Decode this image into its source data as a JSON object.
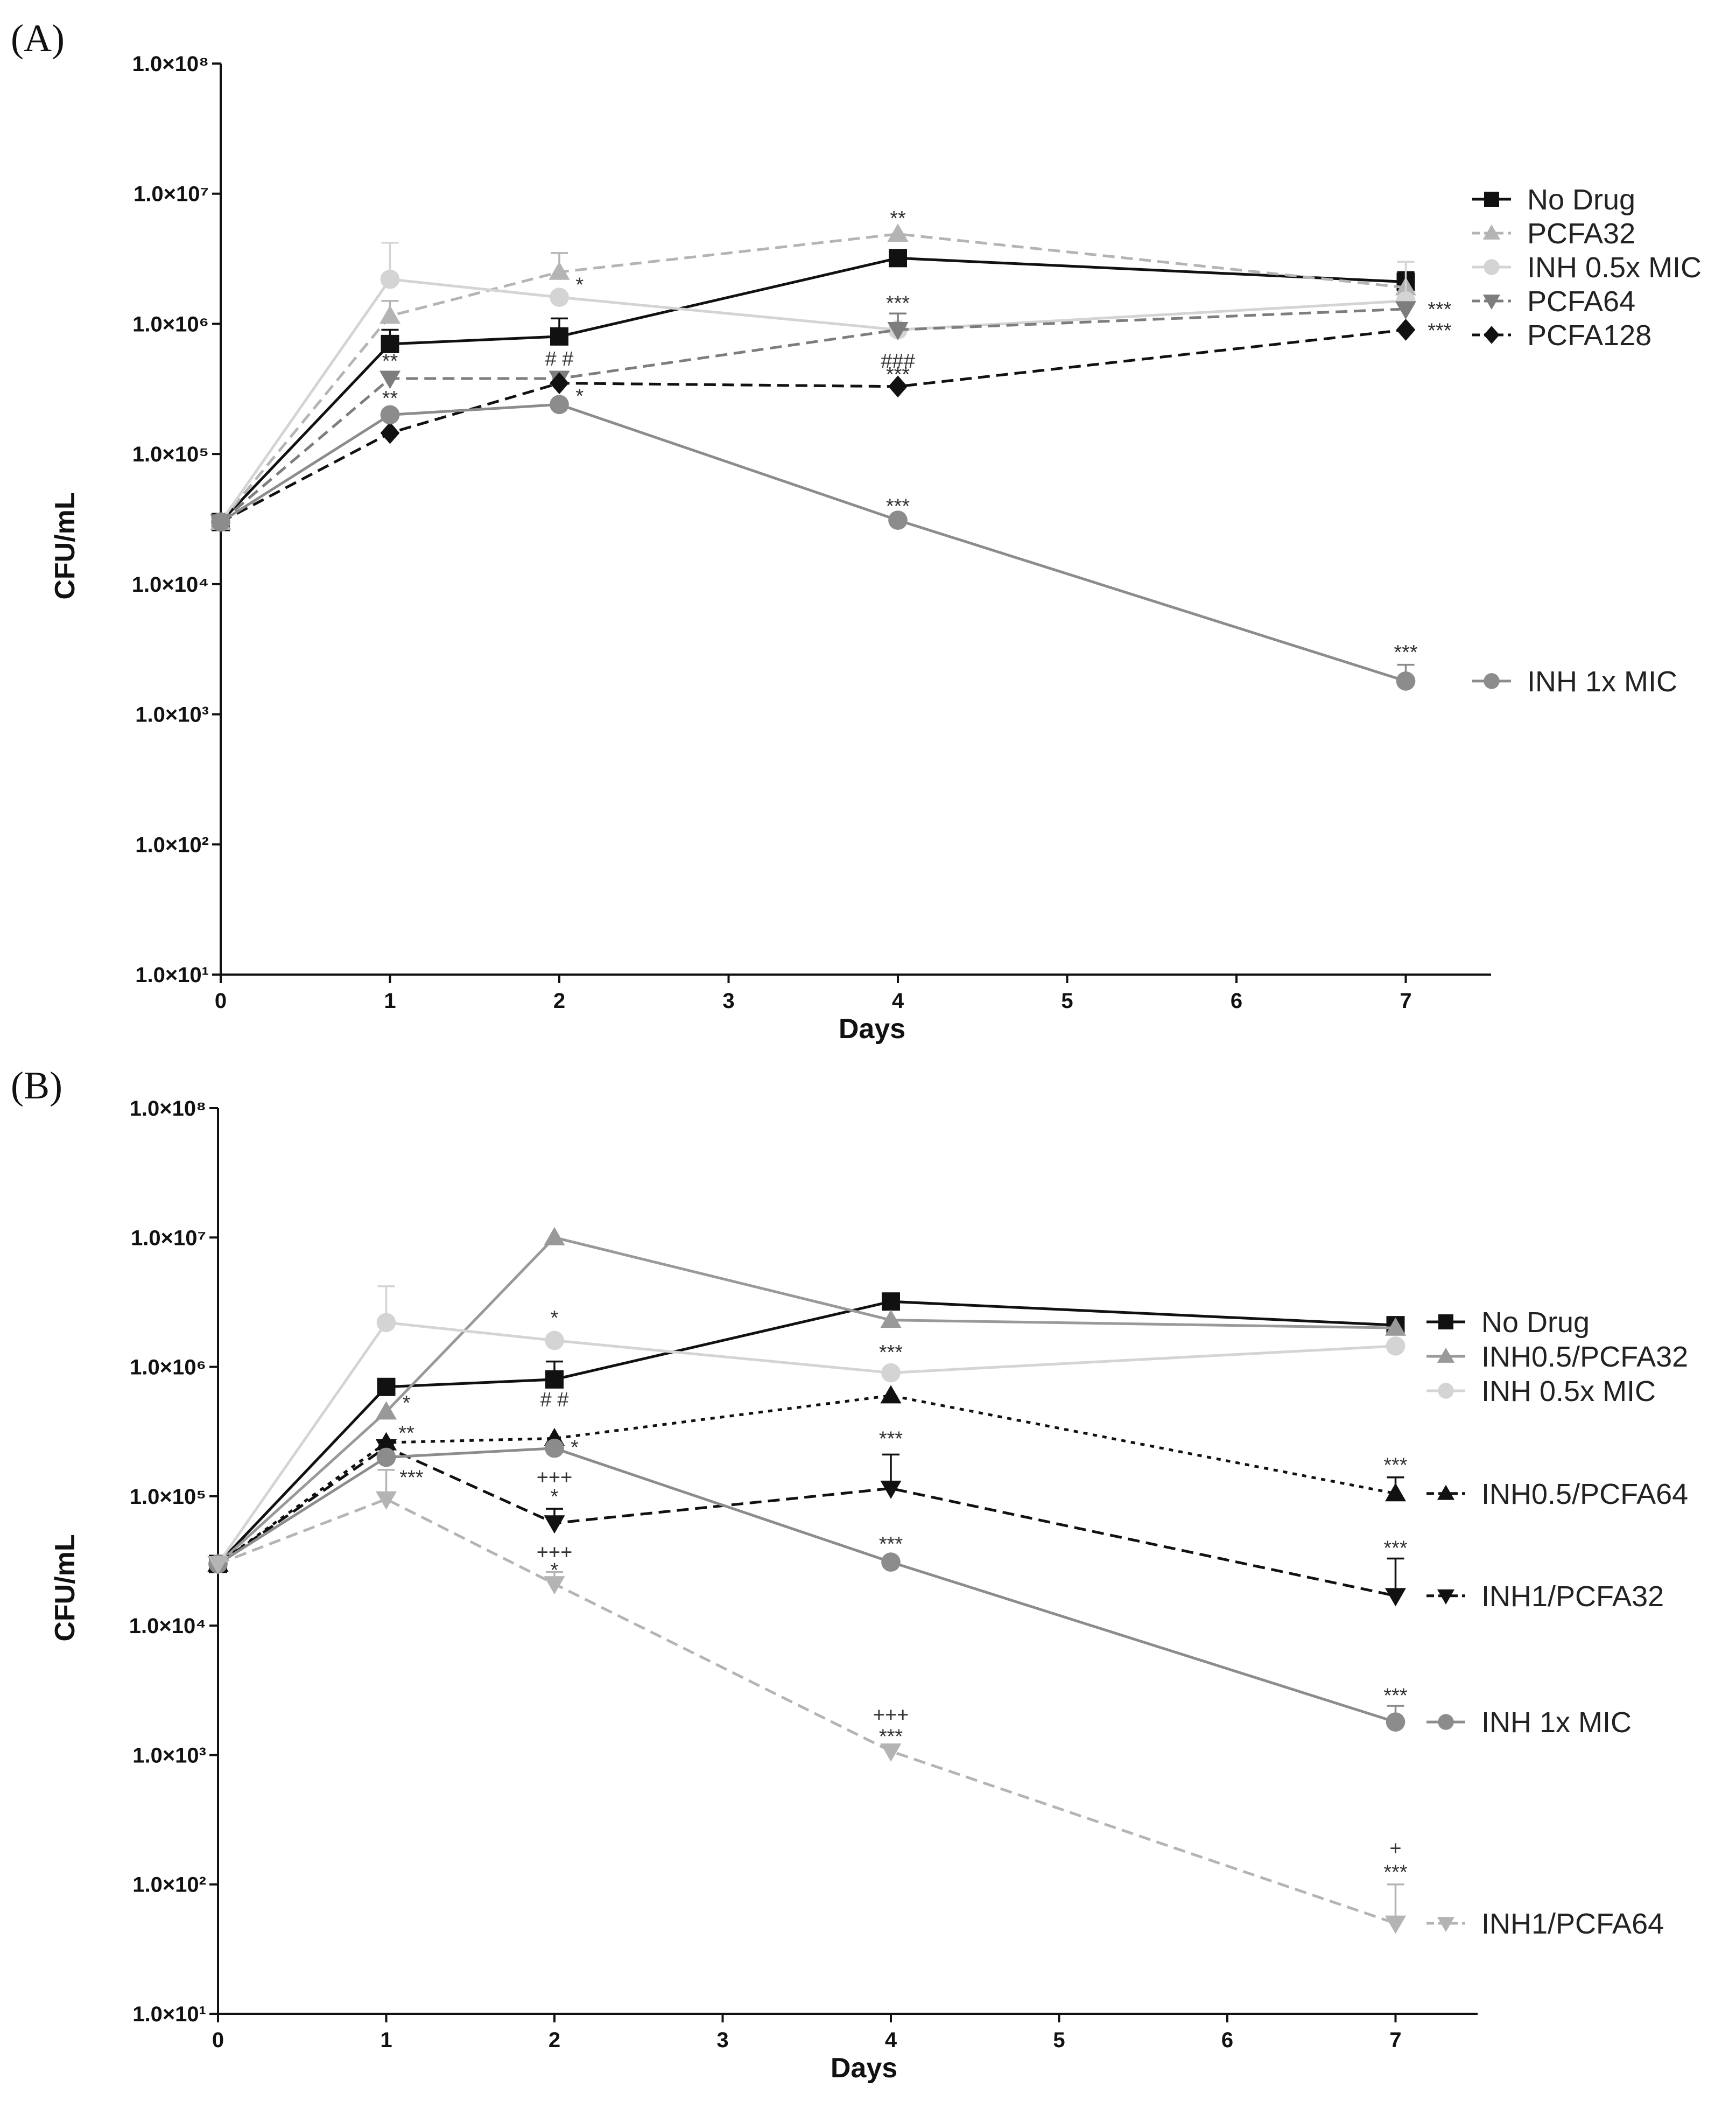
{
  "colors": {
    "black": "#111111",
    "gray": "#8c8c8c",
    "light_gray": "#b4b4b4",
    "lighter_gray": "#d4d4d4",
    "mid_gray": "#7d7d7d"
  },
  "chart_data": [
    {
      "panel_label": "(A)",
      "type": "line",
      "xlabel": "Days",
      "ylabel": "CFU/mL",
      "yscale": "log",
      "ylim": [
        10,
        100000000
      ],
      "xlim": [
        0,
        7
      ],
      "x_ticks": [
        "0",
        "1",
        "2",
        "3",
        "4",
        "5",
        "6",
        "7"
      ],
      "y_tick_labels": [
        "1.0×10¹",
        "1.0×10²",
        "1.0×10³",
        "1.0×10⁴",
        "1.0×10⁵",
        "1.0×10⁶",
        "1.0×10⁷",
        "1.0×10⁸"
      ],
      "series": [
        {
          "name": "No Drug",
          "x": [
            0,
            1,
            2,
            4,
            7
          ],
          "values": [
            30000,
            700000,
            800000,
            3200000,
            2100000
          ],
          "err_upper": [
            null,
            900000,
            1100000,
            3400000,
            2500000
          ],
          "color": "#111111",
          "dash": "",
          "marker": "square",
          "legend_group": "top"
        },
        {
          "name": "PCFA32",
          "x": [
            0,
            1,
            2,
            4,
            7
          ],
          "values": [
            30000,
            1150000,
            2500000,
            4900000,
            1900000
          ],
          "err_upper": [
            null,
            1500000,
            3500000,
            null,
            null
          ],
          "color": "#b4b4b4",
          "dash": "22 12",
          "marker": "triangle-up",
          "legend_group": "top"
        },
        {
          "name": "INH 0.5x MIC",
          "x": [
            0,
            1,
            2,
            4,
            7
          ],
          "values": [
            30000,
            2200000,
            1600000,
            900000,
            1500000
          ],
          "err_upper": [
            null,
            4200000,
            null,
            null,
            3000000
          ],
          "color": "#d4d4d4",
          "dash": "",
          "marker": "circle",
          "legend_group": "top"
        },
        {
          "name": "PCFA64",
          "x": [
            0,
            1,
            2,
            4,
            7
          ],
          "values": [
            30000,
            380000,
            380000,
            900000,
            1300000
          ],
          "err_upper": [
            null,
            null,
            null,
            1200000,
            null
          ],
          "color": "#7d7d7d",
          "dash": "22 12",
          "marker": "triangle-down",
          "legend_group": "top"
        },
        {
          "name": "PCFA128",
          "x": [
            0,
            1,
            2,
            4,
            7
          ],
          "values": [
            30000,
            145000,
            350000,
            330000,
            900000
          ],
          "err_upper": [
            null,
            null,
            null,
            null,
            null
          ],
          "color": "#111111",
          "dash": "22 12",
          "marker": "diamond",
          "legend_group": "top"
        },
        {
          "name": "INH 1x MIC",
          "x": [
            0,
            1,
            2,
            4,
            7
          ],
          "values": [
            30000,
            200000,
            240000,
            31000,
            1800
          ],
          "err_upper": [
            null,
            null,
            null,
            null,
            2400
          ],
          "color": "#8c8c8c",
          "dash": "",
          "marker": "circle",
          "legend_group": "end"
        }
      ],
      "annotations": [
        {
          "text": "**",
          "x": 4,
          "y": 6500000
        },
        {
          "text": "*",
          "x": 2.12,
          "y": 2000000
        },
        {
          "text": "***",
          "x": 4,
          "y": 1450000
        },
        {
          "text": "**",
          "x": 1,
          "y": 520000
        },
        {
          "text": "# #",
          "x": 2,
          "y": 540000
        },
        {
          "text": "###",
          "x": 4,
          "y": 520000
        },
        {
          "text": "***",
          "x": 4,
          "y": 410000
        },
        {
          "text": "**",
          "x": 1,
          "y": 270000
        },
        {
          "text": "*",
          "x": 2.12,
          "y": 280000
        },
        {
          "text": "***",
          "x": 4,
          "y": 40000
        },
        {
          "text": "***",
          "x": 7,
          "y": 3000
        },
        {
          "text": "***",
          "x": 7.2,
          "y": 1300000
        },
        {
          "text": "***",
          "x": 7.2,
          "y": 890000
        }
      ]
    },
    {
      "panel_label": "(B)",
      "type": "line",
      "xlabel": "Days",
      "ylabel": "CFU/mL",
      "yscale": "log",
      "ylim": [
        10,
        100000000
      ],
      "xlim": [
        0,
        7
      ],
      "x_ticks": [
        "0",
        "1",
        "2",
        "3",
        "4",
        "5",
        "6",
        "7"
      ],
      "y_tick_labels": [
        "1.0×10¹",
        "1.0×10²",
        "1.0×10³",
        "1.0×10⁴",
        "1.0×10⁵",
        "1.0×10⁶",
        "1.0×10⁷",
        "1.0×10⁸"
      ],
      "series": [
        {
          "name": "No Drug",
          "x": [
            0,
            1,
            2,
            4,
            7
          ],
          "values": [
            30000,
            700000,
            800000,
            3200000,
            2100000
          ],
          "err_upper": [
            null,
            null,
            1100000,
            3400000,
            null
          ],
          "color": "#111111",
          "dash": "",
          "marker": "square",
          "legend_group": "top"
        },
        {
          "name": "INH0.5/PCFA32",
          "x": [
            0,
            1,
            2,
            4,
            7
          ],
          "values": [
            30000,
            450000,
            10000000,
            2300000,
            2000000
          ],
          "err_upper": [
            null,
            null,
            null,
            null,
            null
          ],
          "color": "#999999",
          "dash": "",
          "marker": "triangle-up",
          "legend_group": "top"
        },
        {
          "name": "INH 0.5x MIC",
          "x": [
            0,
            1,
            2,
            4,
            7
          ],
          "values": [
            30000,
            2200000,
            1600000,
            900000,
            1450000
          ],
          "err_upper": [
            null,
            4200000,
            null,
            null,
            null
          ],
          "color": "#d4d4d4",
          "dash": "",
          "marker": "circle",
          "legend_group": "top"
        },
        {
          "name": "INH0.5/PCFA64",
          "x": [
            0,
            1,
            2,
            4,
            7
          ],
          "values": [
            30000,
            260000,
            280000,
            600000,
            105000
          ],
          "err_upper": [
            null,
            null,
            null,
            null,
            140000
          ],
          "color": "#111111",
          "dash": "8 10",
          "marker": "triangle-up",
          "legend_group": "end"
        },
        {
          "name": "INH1/PCFA32",
          "x": [
            0,
            1,
            2,
            4,
            7
          ],
          "values": [
            30000,
            240000,
            62000,
            115000,
            17000
          ],
          "err_upper": [
            null,
            null,
            80000,
            210000,
            33000
          ],
          "color": "#111111",
          "dash": "22 12",
          "marker": "triangle-down",
          "legend_group": "end"
        },
        {
          "name": "INH 1x MIC",
          "x": [
            0,
            1,
            2,
            4,
            7
          ],
          "values": [
            30000,
            200000,
            235000,
            31000,
            1800
          ],
          "err_upper": [
            null,
            null,
            null,
            null,
            2400
          ],
          "color": "#8c8c8c",
          "dash": "",
          "marker": "circle",
          "legend_group": "end"
        },
        {
          "name": "INH1/PCFA64",
          "x": [
            0,
            1,
            2,
            4,
            7
          ],
          "values": [
            30000,
            95000,
            21000,
            1070,
            50
          ],
          "err_upper": [
            null,
            160000,
            26000,
            null,
            100
          ],
          "color": "#b4b4b4",
          "dash": "22 12",
          "marker": "triangle-down",
          "legend_group": "end"
        }
      ],
      "annotations": [
        {
          "text": "*",
          "x": 2,
          "y": 2400000
        },
        {
          "text": "***",
          "x": 4,
          "y": 1300000
        },
        {
          "text": "*",
          "x": 1.12,
          "y": 530000
        },
        {
          "text": "# #",
          "x": 2,
          "y": 560000
        },
        {
          "text": "**",
          "x": 1.12,
          "y": 310000
        },
        {
          "text": "***",
          "x": 4,
          "y": 280000
        },
        {
          "text": "*",
          "x": 2.12,
          "y": 240000
        },
        {
          "text": "***",
          "x": 1.15,
          "y": 140000
        },
        {
          "text": "+++",
          "x": 2,
          "y": 140000
        },
        {
          "text": "*",
          "x": 2,
          "y": 100000
        },
        {
          "text": "+++",
          "x": 2,
          "y": 37000
        },
        {
          "text": "*",
          "x": 2,
          "y": 27000
        },
        {
          "text": "***",
          "x": 4,
          "y": 43000
        },
        {
          "text": "***",
          "x": 7,
          "y": 175000
        },
        {
          "text": "***",
          "x": 7,
          "y": 40000
        },
        {
          "text": "***",
          "x": 7,
          "y": 2900
        },
        {
          "text": "+++",
          "x": 4,
          "y": 2050
        },
        {
          "text": "***",
          "x": 4,
          "y": 1400
        },
        {
          "text": "+",
          "x": 7,
          "y": 190
        },
        {
          "text": "***",
          "x": 7,
          "y": 125
        }
      ]
    }
  ]
}
